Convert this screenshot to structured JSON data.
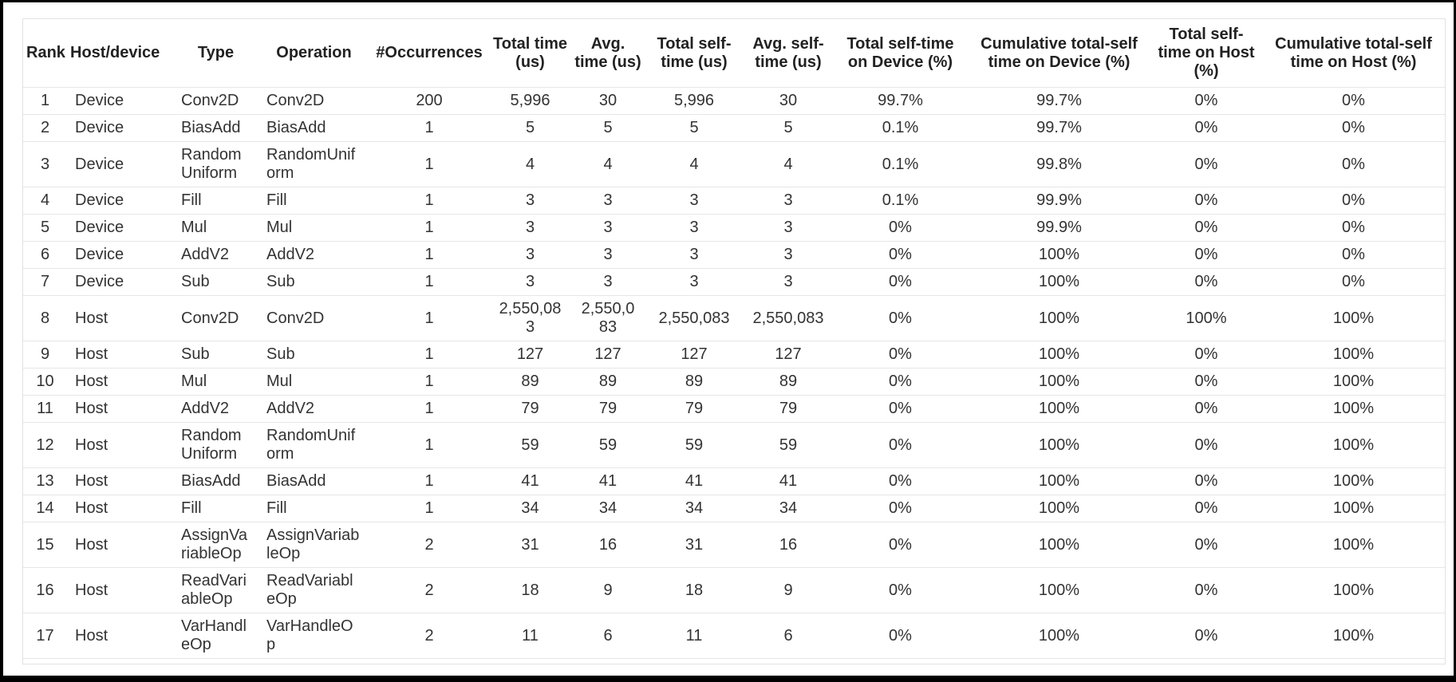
{
  "table": {
    "columns": [
      {
        "key": "rank",
        "label": "Rank"
      },
      {
        "key": "host_device",
        "label": "Host/device"
      },
      {
        "key": "type",
        "label": "Type"
      },
      {
        "key": "operation",
        "label": "Operation"
      },
      {
        "key": "occurrences",
        "label": "#Occurrences"
      },
      {
        "key": "total_time_us",
        "label": "Total time (us)"
      },
      {
        "key": "avg_time_us",
        "label": "Avg. time (us)"
      },
      {
        "key": "total_self_time_us",
        "label": "Total self-time (us)"
      },
      {
        "key": "avg_self_time_us",
        "label": "Avg. self-time (us)"
      },
      {
        "key": "total_self_time_on_device_pct",
        "label": "Total self-time on Device (%)"
      },
      {
        "key": "cumulative_total_self_time_on_device_pct",
        "label": "Cumulative total-self time on Device (%)"
      },
      {
        "key": "total_self_time_on_host_pct",
        "label": "Total self-time on Host (%)"
      },
      {
        "key": "cumulative_total_self_time_on_host_pct",
        "label": "Cumulative total-self time on Host (%)"
      }
    ],
    "rows": [
      [
        "1",
        "Device",
        "Conv2D",
        "Conv2D",
        "200",
        "5,996",
        "30",
        "5,996",
        "30",
        "99.7%",
        "99.7%",
        "0%",
        "0%"
      ],
      [
        "2",
        "Device",
        "BiasAdd",
        "BiasAdd",
        "1",
        "5",
        "5",
        "5",
        "5",
        "0.1%",
        "99.7%",
        "0%",
        "0%"
      ],
      [
        "3",
        "Device",
        "RandomUniform",
        "RandomUniform",
        "1",
        "4",
        "4",
        "4",
        "4",
        "0.1%",
        "99.8%",
        "0%",
        "0%"
      ],
      [
        "4",
        "Device",
        "Fill",
        "Fill",
        "1",
        "3",
        "3",
        "3",
        "3",
        "0.1%",
        "99.9%",
        "0%",
        "0%"
      ],
      [
        "5",
        "Device",
        "Mul",
        "Mul",
        "1",
        "3",
        "3",
        "3",
        "3",
        "0%",
        "99.9%",
        "0%",
        "0%"
      ],
      [
        "6",
        "Device",
        "AddV2",
        "AddV2",
        "1",
        "3",
        "3",
        "3",
        "3",
        "0%",
        "100%",
        "0%",
        "0%"
      ],
      [
        "7",
        "Device",
        "Sub",
        "Sub",
        "1",
        "3",
        "3",
        "3",
        "3",
        "0%",
        "100%",
        "0%",
        "0%"
      ],
      [
        "8",
        "Host",
        "Conv2D",
        "Conv2D",
        "1",
        "2,550,083",
        "2,550,083",
        "2,550,083",
        "2,550,083",
        "0%",
        "100%",
        "100%",
        "100%"
      ],
      [
        "9",
        "Host",
        "Sub",
        "Sub",
        "1",
        "127",
        "127",
        "127",
        "127",
        "0%",
        "100%",
        "0%",
        "100%"
      ],
      [
        "10",
        "Host",
        "Mul",
        "Mul",
        "1",
        "89",
        "89",
        "89",
        "89",
        "0%",
        "100%",
        "0%",
        "100%"
      ],
      [
        "11",
        "Host",
        "AddV2",
        "AddV2",
        "1",
        "79",
        "79",
        "79",
        "79",
        "0%",
        "100%",
        "0%",
        "100%"
      ],
      [
        "12",
        "Host",
        "RandomUniform",
        "RandomUniform",
        "1",
        "59",
        "59",
        "59",
        "59",
        "0%",
        "100%",
        "0%",
        "100%"
      ],
      [
        "13",
        "Host",
        "BiasAdd",
        "BiasAdd",
        "1",
        "41",
        "41",
        "41",
        "41",
        "0%",
        "100%",
        "0%",
        "100%"
      ],
      [
        "14",
        "Host",
        "Fill",
        "Fill",
        "1",
        "34",
        "34",
        "34",
        "34",
        "0%",
        "100%",
        "0%",
        "100%"
      ],
      [
        "15",
        "Host",
        "AssignVariableOp",
        "AssignVariableOp",
        "2",
        "31",
        "16",
        "31",
        "16",
        "0%",
        "100%",
        "0%",
        "100%"
      ],
      [
        "16",
        "Host",
        "ReadVariableOp",
        "ReadVariableOp",
        "2",
        "18",
        "9",
        "18",
        "9",
        "0%",
        "100%",
        "0%",
        "100%"
      ],
      [
        "17",
        "Host",
        "VarHandleOp",
        "VarHandleOp",
        "2",
        "11",
        "6",
        "11",
        "6",
        "0%",
        "100%",
        "0%",
        "100%"
      ]
    ]
  },
  "colors": {
    "frame": "#000000",
    "panel_border": "#e2e2e2",
    "gridline": "#e6e6e6",
    "header_text": "#222222",
    "body_text": "#333333",
    "row_background": "#ffffff"
  }
}
